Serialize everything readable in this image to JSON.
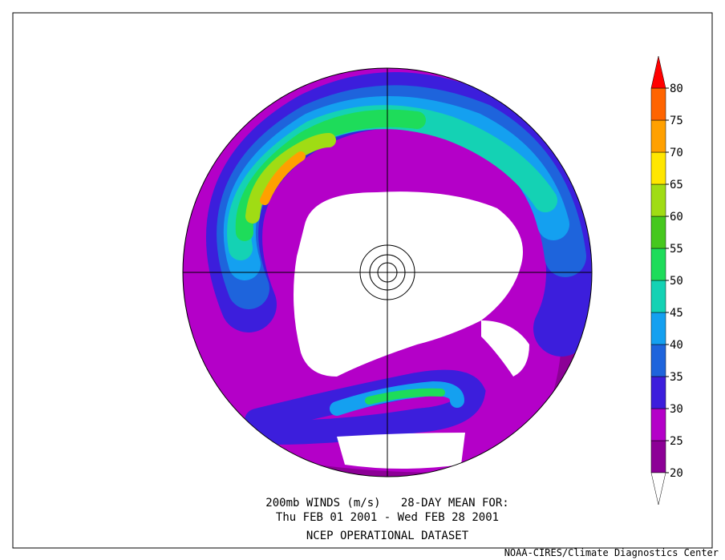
{
  "map_data": {
    "caption": [
      "200mb WINDS (m/s)   28-DAY MEAN FOR:",
      "Thu FEB 01 2001 - Wed FEB 28 2001",
      "NCEP OPERATIONAL DATASET"
    ],
    "credit": "NOAA-CIRES/Climate Diagnostics Center",
    "colorbar": {
      "levels": [
        20,
        25,
        30,
        35,
        40,
        45,
        50,
        55,
        60,
        65,
        70,
        75,
        80
      ],
      "colors": [
        "#8c0096",
        "#b400c8",
        "#3c1edc",
        "#1e64dc",
        "#14a0f0",
        "#14d2b4",
        "#1edc5a",
        "#46c81e",
        "#a0dc14",
        "#ffe600",
        "#ffa000",
        "#ff6400"
      ],
      "under_color": "#ffffff",
      "over_color": "#ff0000"
    }
  }
}
